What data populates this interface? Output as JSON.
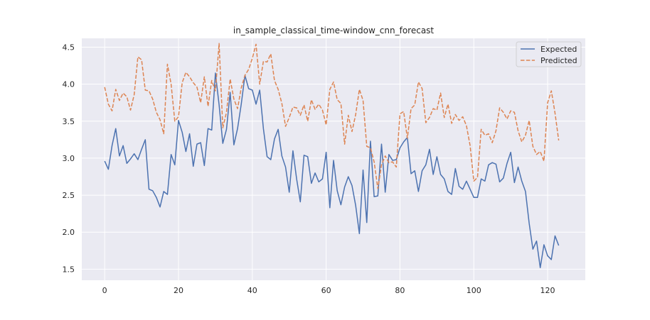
{
  "chart_data": {
    "type": "line",
    "title": "in_sample_classical_time-window_cnn_forecast",
    "xlabel": "",
    "ylabel": "",
    "xlim": [
      -6.2,
      130.2
    ],
    "ylim": [
      1.35,
      4.62
    ],
    "xticks": [
      0,
      20,
      40,
      60,
      80,
      100,
      120
    ],
    "yticks": [
      1.5,
      2.0,
      2.5,
      3.0,
      3.5,
      4.0,
      4.5
    ],
    "ytick_labels": [
      "1.5",
      "2.0",
      "2.5",
      "3.0",
      "3.5",
      "4.0",
      "4.5"
    ],
    "grid": true,
    "legend_position": "top-right",
    "colors": {
      "background": "#eaeaf2",
      "grid": "#ffffff",
      "expected": "#4c72b0",
      "predicted": "#dd8452"
    },
    "series": [
      {
        "name": "Expected",
        "style": "solid",
        "values": [
          2.96,
          2.85,
          3.17,
          3.4,
          3.03,
          3.17,
          2.93,
          2.99,
          3.06,
          2.98,
          3.12,
          3.25,
          2.58,
          2.56,
          2.47,
          2.34,
          2.55,
          2.51,
          3.05,
          2.91,
          3.51,
          3.35,
          3.09,
          3.33,
          2.89,
          3.19,
          3.21,
          2.9,
          3.4,
          3.38,
          4.15,
          3.72,
          3.2,
          3.39,
          3.89,
          3.18,
          3.4,
          3.73,
          4.12,
          3.94,
          3.92,
          3.73,
          3.92,
          3.4,
          3.02,
          2.98,
          3.26,
          3.39,
          3.03,
          2.88,
          2.54,
          3.1,
          2.72,
          2.41,
          3.04,
          3.02,
          2.66,
          2.8,
          2.68,
          2.72,
          3.08,
          2.33,
          2.97,
          2.56,
          2.37,
          2.61,
          2.75,
          2.63,
          2.36,
          1.98,
          2.84,
          2.13,
          3.23,
          2.48,
          2.49,
          3.19,
          2.54,
          3.05,
          2.97,
          2.98,
          3.14,
          3.22,
          3.28,
          2.79,
          2.83,
          2.55,
          2.83,
          2.91,
          3.12,
          2.78,
          3.02,
          2.78,
          2.72,
          2.55,
          2.51,
          2.86,
          2.62,
          2.58,
          2.69,
          2.58,
          2.47,
          2.47,
          2.72,
          2.69,
          2.91,
          2.94,
          2.92,
          2.68,
          2.73,
          2.93,
          3.08,
          2.67,
          2.88,
          2.69,
          2.55,
          2.12,
          1.77,
          1.88,
          1.52,
          1.83,
          1.68,
          1.63,
          1.95,
          1.82
        ]
      },
      {
        "name": "Predicted",
        "style": "dashed",
        "values": [
          3.96,
          3.73,
          3.64,
          3.93,
          3.78,
          3.88,
          3.83,
          3.65,
          3.86,
          4.37,
          4.33,
          3.92,
          3.91,
          3.8,
          3.62,
          3.52,
          3.33,
          4.27,
          4.0,
          3.5,
          3.56,
          4.02,
          4.16,
          4.1,
          4.02,
          3.96,
          3.75,
          4.1,
          3.7,
          4.05,
          3.91,
          4.55,
          3.41,
          3.62,
          4.07,
          3.8,
          3.67,
          3.95,
          4.12,
          4.2,
          4.35,
          4.54,
          4.0,
          4.31,
          4.3,
          4.41,
          4.05,
          3.93,
          3.74,
          3.43,
          3.55,
          3.69,
          3.68,
          3.58,
          3.72,
          3.5,
          3.79,
          3.66,
          3.73,
          3.65,
          3.45,
          3.93,
          4.03,
          3.79,
          3.74,
          3.19,
          3.58,
          3.36,
          3.59,
          3.93,
          3.78,
          3.16,
          3.14,
          2.95,
          2.59,
          2.91,
          3.03,
          2.94,
          2.95,
          2.88,
          3.6,
          3.63,
          3.27,
          3.67,
          3.72,
          4.03,
          3.94,
          3.48,
          3.55,
          3.67,
          3.65,
          3.88,
          3.55,
          3.73,
          3.47,
          3.59,
          3.51,
          3.56,
          3.44,
          3.17,
          2.69,
          2.74,
          3.39,
          3.31,
          3.33,
          3.21,
          3.37,
          3.68,
          3.62,
          3.53,
          3.64,
          3.62,
          3.37,
          3.22,
          3.31,
          3.51,
          3.16,
          3.05,
          3.09,
          2.96,
          3.75,
          3.91,
          3.61,
          3.24
        ]
      }
    ]
  }
}
